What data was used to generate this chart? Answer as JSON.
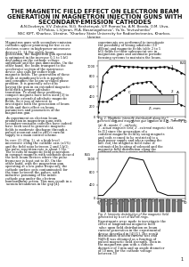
{
  "title_line1": "THE MAGNETIC FIELD EFFECT ON ELECTRON BEAM",
  "title_line2": "GENERATION IN MAGNETRON INJECTION GUNS WITH",
  "title_line3": "SECONDARY-EMISSION CATHODES",
  "authors": "A.N.Dovbnya, V.V. Zakutin, N.G. Reshetnyak, V.P. Romas'ko, A.M. Bovda, O.M. Utva,",
  "authors2": "V.F.Pokas, L.V.Jeran, M.A. Basanogoltseva¹, Ya.Ya. Yevtushenko¹",
  "affil": "NSC KIPT, Kharkov, Ukraine, ¹Kharkov State University for Radioelectronics, Kharkov,",
  "affil2": "Ukraine",
  "fig1_caption": "Fig. 1. Magnetic intensity distribution along the\nsolenoid axis and magnetron gun location at 87°. Thereby\n(a): A - anode; C - cathode;",
  "fig1_caption2": "1 - actual magnetic field; 2 - external magnetic field.",
  "fig2_caption": "Fig. 2. Intensity distribution of the magnetic field\ngenerated by a set of NdFeB rings.",
  "page_num": "1",
  "bg_color": "#ffffff",
  "text_color": "#111111"
}
